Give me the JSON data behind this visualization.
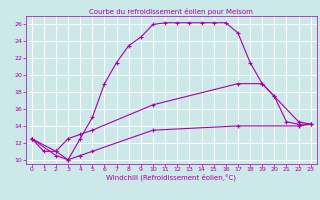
{
  "title": "Courbe du refroidissement éolien pour Melsom",
  "xlabel": "Windchill (Refroidissement éolien,°C)",
  "background_color": "#cce8e8",
  "grid_color": "#ffffff",
  "line_color": "#aa00aa",
  "xlim": [
    -0.5,
    23.5
  ],
  "ylim": [
    9.5,
    27
  ],
  "xticks": [
    0,
    1,
    2,
    3,
    4,
    5,
    6,
    7,
    8,
    9,
    10,
    11,
    12,
    13,
    14,
    15,
    16,
    17,
    18,
    19,
    20,
    21,
    22,
    23
  ],
  "yticks": [
    10,
    12,
    14,
    16,
    18,
    20,
    22,
    24,
    26
  ],
  "line1_x": [
    0,
    1,
    2,
    3,
    4,
    5,
    6,
    7,
    8,
    9,
    10,
    11,
    12,
    13,
    14,
    15,
    16,
    17,
    18,
    19,
    20,
    21,
    22,
    23
  ],
  "line1_y": [
    12.5,
    11.0,
    11.0,
    10.0,
    12.5,
    15.0,
    19.0,
    21.5,
    23.5,
    24.5,
    26.0,
    26.2,
    26.2,
    26.2,
    26.2,
    26.2,
    26.2,
    25.0,
    21.5,
    19.0,
    17.5,
    14.5,
    14.2,
    14.2
  ],
  "line2_x": [
    0,
    2,
    3,
    4,
    5,
    10,
    17,
    19,
    20,
    22,
    23
  ],
  "line2_y": [
    12.5,
    11.0,
    12.5,
    13.0,
    13.5,
    16.5,
    19.0,
    19.0,
    17.5,
    14.5,
    14.2
  ],
  "line3_x": [
    0,
    2,
    3,
    4,
    5,
    10,
    17,
    22,
    23
  ],
  "line3_y": [
    12.5,
    10.5,
    10.0,
    10.5,
    11.0,
    13.5,
    14.0,
    14.0,
    14.2
  ],
  "marker": "+",
  "markersize": 3,
  "linewidth": 0.8,
  "tick_labelsize": 4.5,
  "xlabel_fontsize": 5.0,
  "title_fontsize": 5.0
}
